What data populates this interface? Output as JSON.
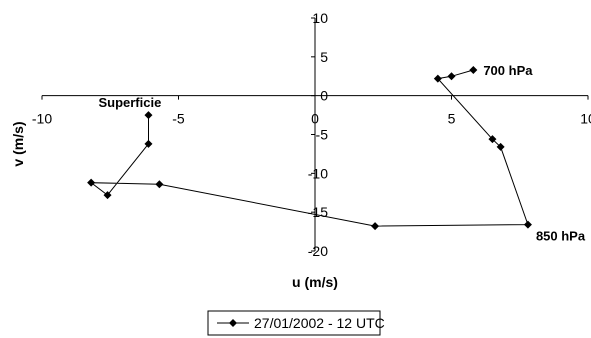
{
  "chart_data": {
    "type": "line",
    "title": "",
    "xlabel": "u (m/s)",
    "ylabel": "v (m/s)",
    "xlim": [
      -10,
      10
    ],
    "ylim": [
      -20,
      10
    ],
    "x_ticks": [
      -10,
      -5,
      0,
      5,
      10
    ],
    "y_ticks": [
      10,
      5,
      0,
      -5,
      -10,
      -15,
      -20
    ],
    "grid": false,
    "legend_position": "bottom",
    "series": [
      {
        "name": "27/01/2002 - 12 UTC",
        "color": "#000000",
        "marker": "diamond",
        "x": [
          -6.1,
          -6.1,
          -7.6,
          -8.2,
          -5.7,
          2.2,
          7.8,
          6.8,
          6.5,
          4.5,
          5.0,
          5.8
        ],
        "y": [
          -2.5,
          -6.2,
          -12.8,
          -11.2,
          -11.4,
          -16.8,
          -16.6,
          -6.6,
          -5.6,
          2.2,
          2.5,
          3.3
        ]
      }
    ],
    "annotations": [
      {
        "text": "Superficie",
        "x": -6.1,
        "y": -2.5
      },
      {
        "text": "850 hPa",
        "x": 7.8,
        "y": -16.6
      },
      {
        "text": "700 hPa",
        "x": 5.8,
        "y": 3.3
      }
    ]
  }
}
